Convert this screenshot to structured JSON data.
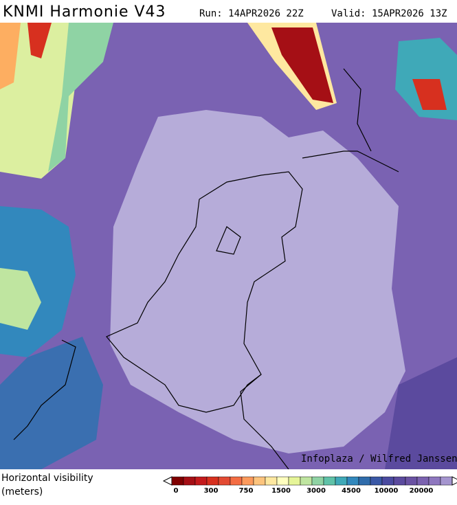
{
  "header": {
    "title": "KNMI Harmonie V43",
    "run": "Run: 14APR2026 22Z",
    "valid": "Valid: 15APR2026 13Z"
  },
  "map": {
    "credit": "Infoplaza / Wilfred Janssen"
  },
  "legend": {
    "label": [
      "Horizontal visibility",
      "(meters)"
    ]
  },
  "colorbar": {
    "colors": [
      "#7f0000",
      "#a50f15",
      "#c41a1c",
      "#d7301f",
      "#e34a33",
      "#f46d43",
      "#fc9a5c",
      "#fdc47d",
      "#fee8a0",
      "#ffffbf",
      "#e6f598",
      "#bfe5a0",
      "#8fd3a4",
      "#5fc2a8",
      "#3fa9b8",
      "#3288bd",
      "#2f6cab",
      "#3a58a6",
      "#4a4aa0",
      "#5b4a9e",
      "#6a52a3",
      "#7b62b0",
      "#8e77bf",
      "#a595cf"
    ],
    "labels": [
      0,
      300,
      750,
      1500,
      3000,
      4500,
      10000,
      20000
    ]
  }
}
